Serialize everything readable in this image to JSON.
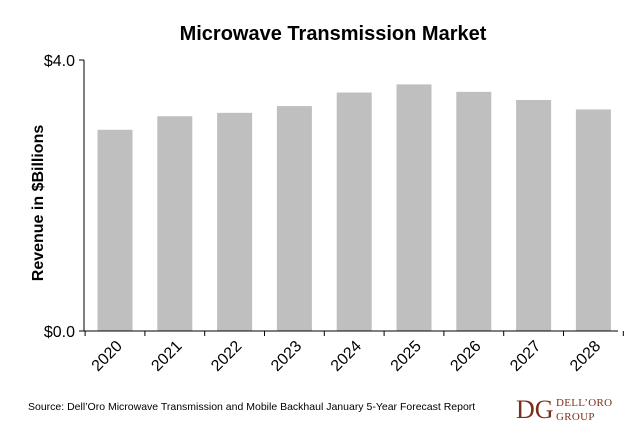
{
  "chart_data": {
    "type": "bar",
    "title": "Microwave Transmission Market",
    "ylabel": "Revenue in $Billions",
    "xlabel": "",
    "ylim": [
      0,
      4
    ],
    "ytick_labels": [
      "$0.0",
      "$4.0"
    ],
    "yticks": [
      0,
      4
    ],
    "categories": [
      "2020",
      "2021",
      "2022",
      "2023",
      "2024",
      "2025",
      "2026",
      "2027",
      "2028"
    ],
    "values": [
      2.97,
      3.17,
      3.22,
      3.32,
      3.52,
      3.64,
      3.53,
      3.41,
      3.27
    ],
    "bar_color": "#bfbfbf",
    "grid": false,
    "legend": "none"
  },
  "footer": {
    "source": "Source: Dell’Oro Microwave Transmission and Mobile Backhaul January 5-Year Forecast Report",
    "logo_mark": "DG",
    "logo_line1": "DELL’ORO",
    "logo_line2": "GROUP",
    "logo_color": "#7a2f1c"
  }
}
